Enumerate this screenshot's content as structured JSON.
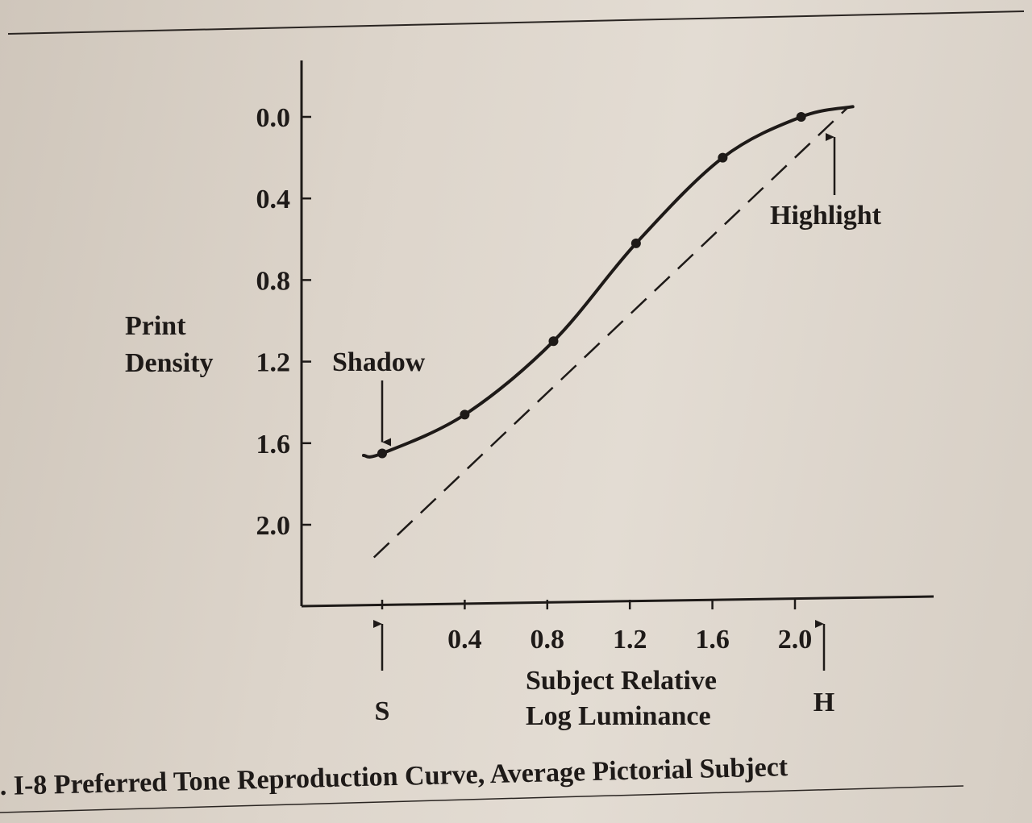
{
  "chart_data": {
    "type": "line",
    "caption": ". I-8 Preferred Tone Reproduction Curve, Average Pictorial Subject",
    "xlabel_line1": "Subject Relative",
    "xlabel_line2": "Log Luminance",
    "ylabel_line1": "Print",
    "ylabel_line2": "Density",
    "xlim": [
      -0.4,
      2.7
    ],
    "ylim": [
      0.0,
      2.4
    ],
    "y_inverted": true,
    "x_ticks": [
      0.0,
      0.4,
      0.8,
      1.2,
      1.6,
      2.0
    ],
    "x_tick_labels": [
      "",
      "0.4",
      "0.8",
      "1.2",
      "1.6",
      "2.0"
    ],
    "y_ticks": [
      0.0,
      0.4,
      0.8,
      1.2,
      1.6,
      2.0
    ],
    "y_tick_labels": [
      "0.0",
      "0.4",
      "0.8",
      "1.2",
      "1.6",
      "2.0"
    ],
    "series": [
      {
        "style": "solid",
        "x": [
          -0.09,
          0.0,
          0.4,
          0.83,
          1.23,
          1.65,
          2.03,
          2.28
        ],
        "y": [
          1.66,
          1.65,
          1.46,
          1.1,
          0.62,
          0.2,
          0.0,
          -0.05
        ],
        "markers_x": [
          0.0,
          0.4,
          0.83,
          1.23,
          1.65,
          2.03
        ],
        "markers_y": [
          1.65,
          1.46,
          1.1,
          0.62,
          0.2,
          0.0
        ]
      },
      {
        "style": "dashed",
        "x": [
          -0.04,
          2.26
        ],
        "y": [
          2.16,
          -0.05
        ]
      }
    ],
    "annotations": [
      {
        "text": "Shadow",
        "x": 0.0,
        "y": 1.65,
        "position": "above"
      },
      {
        "text": "Highlight",
        "x": 2.21,
        "y": 0.1,
        "position": "below"
      },
      {
        "text": "S",
        "x": 0.0,
        "position": "below-axis"
      },
      {
        "text": "H",
        "x": 2.21,
        "position": "below-axis"
      }
    ]
  }
}
